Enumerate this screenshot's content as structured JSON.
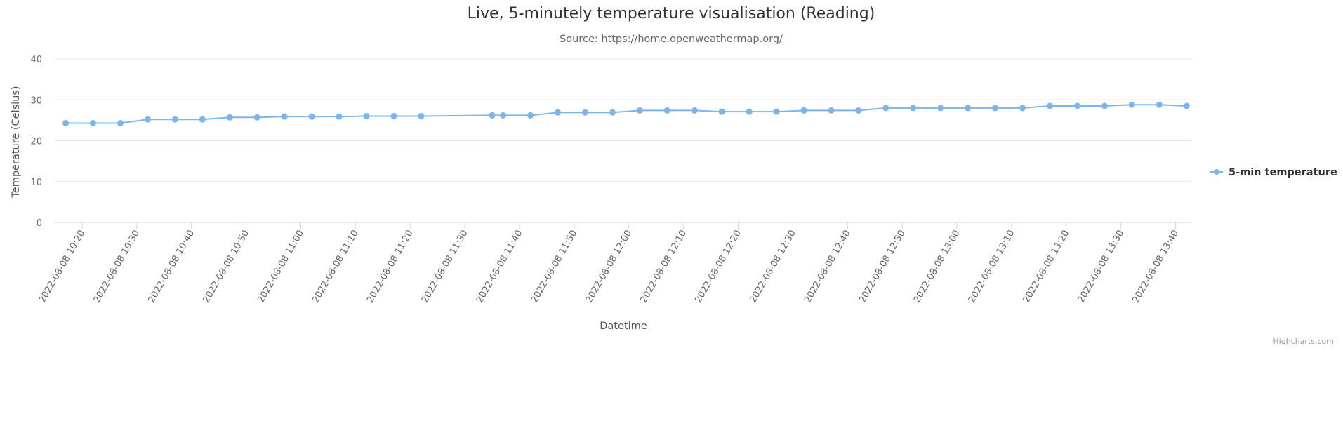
{
  "chart_data": {
    "type": "line",
    "title": "Live, 5-minutely temperature visualisation (Reading)",
    "subtitle": "Source: https://home.openweathermap.org/",
    "xlabel": "Datetime",
    "ylabel": "Temperature (Celsius)",
    "ylim": [
      0,
      40
    ],
    "yticks": [
      0,
      10,
      20,
      30,
      40
    ],
    "xlim": [
      "2022-08-08 10:15",
      "2022-08-08 13:43"
    ],
    "xtick_labels": [
      "2022-08-08 10:20",
      "2022-08-08 10:30",
      "2022-08-08 10:40",
      "2022-08-08 10:50",
      "2022-08-08 11:00",
      "2022-08-08 11:10",
      "2022-08-08 11:20",
      "2022-08-08 11:30",
      "2022-08-08 11:40",
      "2022-08-08 11:50",
      "2022-08-08 12:00",
      "2022-08-08 12:10",
      "2022-08-08 12:20",
      "2022-08-08 12:30",
      "2022-08-08 12:40",
      "2022-08-08 12:50",
      "2022-08-08 13:00",
      "2022-08-08 13:10",
      "2022-08-08 13:20",
      "2022-08-08 13:30",
      "2022-08-08 13:40"
    ],
    "grid": true,
    "legend_position": "right",
    "series": [
      {
        "name": "5-min temperature",
        "color": "#7cb5ec",
        "x": [
          "2022-08-08 10:17",
          "2022-08-08 10:22",
          "2022-08-08 10:27",
          "2022-08-08 10:32",
          "2022-08-08 10:37",
          "2022-08-08 10:42",
          "2022-08-08 10:47",
          "2022-08-08 10:52",
          "2022-08-08 10:57",
          "2022-08-08 11:02",
          "2022-08-08 11:07",
          "2022-08-08 11:12",
          "2022-08-08 11:17",
          "2022-08-08 11:22",
          "2022-08-08 11:35",
          "2022-08-08 11:37",
          "2022-08-08 11:42",
          "2022-08-08 11:47",
          "2022-08-08 11:52",
          "2022-08-08 11:57",
          "2022-08-08 12:02",
          "2022-08-08 12:07",
          "2022-08-08 12:12",
          "2022-08-08 12:17",
          "2022-08-08 12:22",
          "2022-08-08 12:27",
          "2022-08-08 12:32",
          "2022-08-08 12:37",
          "2022-08-08 12:42",
          "2022-08-08 12:47",
          "2022-08-08 12:52",
          "2022-08-08 12:57",
          "2022-08-08 13:02",
          "2022-08-08 13:07",
          "2022-08-08 13:12",
          "2022-08-08 13:17",
          "2022-08-08 13:22",
          "2022-08-08 13:27",
          "2022-08-08 13:32",
          "2022-08-08 13:37",
          "2022-08-08 13:42"
        ],
        "values": [
          24.3,
          24.3,
          24.3,
          25.2,
          25.2,
          25.2,
          25.7,
          25.7,
          25.9,
          25.9,
          25.9,
          26.0,
          26.0,
          26.0,
          26.2,
          26.2,
          26.2,
          26.9,
          26.9,
          26.9,
          27.4,
          27.4,
          27.4,
          27.1,
          27.1,
          27.1,
          27.4,
          27.4,
          27.4,
          28.0,
          28.0,
          28.0,
          28.0,
          28.0,
          28.0,
          28.5,
          28.5,
          28.5,
          28.8,
          28.8,
          28.5
        ]
      }
    ]
  },
  "credits": "Highcharts.com"
}
